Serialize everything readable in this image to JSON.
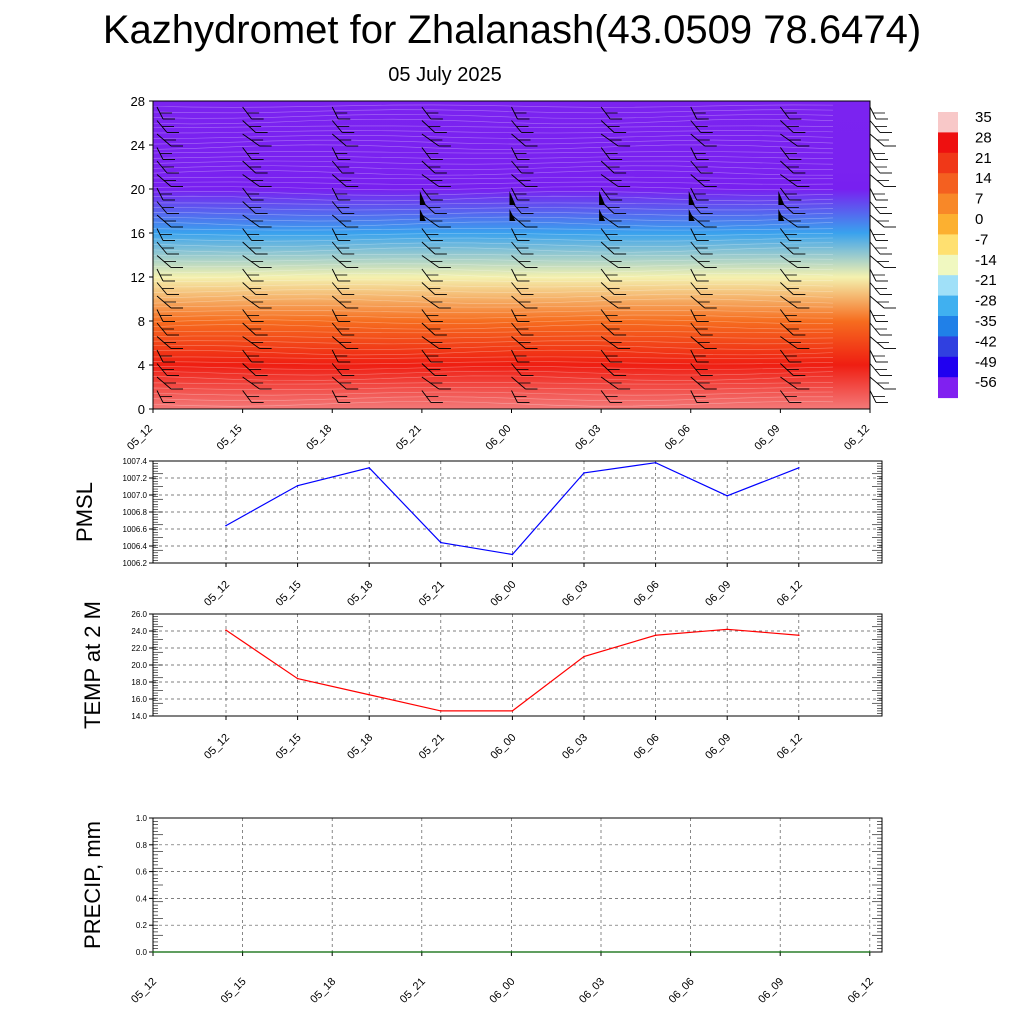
{
  "header": {
    "title": "Kazhydromet for Zhalanash(43.0509 78.6474)",
    "subtitle": "05 July 2025"
  },
  "colors": {
    "pmsl_line": "#0000ff",
    "temp_line": "#ff0000",
    "precip_line": "#006400",
    "grid": "#555555"
  },
  "chart_data": [
    {
      "id": "cross-section",
      "type": "heatmap",
      "description_of_axes": "height vs time",
      "categories": [
        "05_12",
        "05_15",
        "05_18",
        "05_21",
        "06_00",
        "06_03",
        "06_06",
        "06_09",
        "06_12"
      ],
      "ylim": [
        0,
        28
      ],
      "yticks": [
        "0",
        "4",
        "8",
        "12",
        "16",
        "20",
        "24",
        "28"
      ],
      "temperature_profile_by_height": [
        {
          "h": 0,
          "t": 32
        },
        {
          "h": 4,
          "t": 24
        },
        {
          "h": 8,
          "t": 10
        },
        {
          "h": 12,
          "t": -12
        },
        {
          "h": 16,
          "t": -30
        },
        {
          "h": 20,
          "t": -56
        },
        {
          "h": 22,
          "t": -60
        },
        {
          "h": 28,
          "t": -62
        }
      ],
      "colorbar": {
        "labels": [
          "35",
          "28",
          "21",
          "14",
          "7",
          "0",
          "-7",
          "-14",
          "-21",
          "-28",
          "-35",
          "-42",
          "-49",
          "-56"
        ],
        "colors": [
          "#f8c8c8",
          "#ee1010",
          "#f03818",
          "#f46020",
          "#f88828",
          "#fcb030",
          "#ffe070",
          "#f0f8c0",
          "#a0e0f8",
          "#40b0f0",
          "#2080e8",
          "#3040e0",
          "#2000f0",
          "#8020f0"
        ]
      },
      "wind_barb_columns": 9
    },
    {
      "id": "pmsl",
      "type": "line",
      "ylabel": "PMSL",
      "categories": [
        "05_12",
        "05_15",
        "05_18",
        "05_21",
        "06_00",
        "06_03",
        "06_06",
        "06_09",
        "06_12"
      ],
      "values": [
        1006.64,
        1007.11,
        1007.32,
        1006.44,
        1006.3,
        1007.26,
        1007.38,
        1006.99,
        1007.32
      ],
      "ylim": [
        1006.2,
        1007.4
      ],
      "yticks": [
        "1006.2",
        "1006.4",
        "1006.6",
        "1006.8",
        "1007.0",
        "1007.2",
        "1007.4"
      ]
    },
    {
      "id": "temp2m",
      "type": "line",
      "ylabel": "TEMP at 2 M",
      "categories": [
        "05_12",
        "05_15",
        "05_18",
        "05_21",
        "06_00",
        "06_03",
        "06_06",
        "06_09",
        "06_12"
      ],
      "values": [
        24.1,
        18.4,
        16.5,
        14.6,
        14.6,
        21.0,
        23.5,
        24.2,
        23.5
      ],
      "ylim": [
        14.0,
        26.0
      ],
      "yticks": [
        "14.0",
        "16.0",
        "18.0",
        "20.0",
        "22.0",
        "24.0",
        "26.0"
      ]
    },
    {
      "id": "precip",
      "type": "line",
      "ylabel": "PRECIP, mm",
      "categories": [
        "05_12",
        "05_15",
        "05_18",
        "05_21",
        "06_00",
        "06_03",
        "06_06",
        "06_09",
        "06_12"
      ],
      "values": [
        0,
        0,
        0,
        0,
        0,
        0,
        0,
        0,
        0
      ],
      "ylim": [
        0.0,
        1.0
      ],
      "yticks": [
        "0.0",
        "0.2",
        "0.4",
        "0.6",
        "0.8",
        "1.0"
      ]
    }
  ]
}
